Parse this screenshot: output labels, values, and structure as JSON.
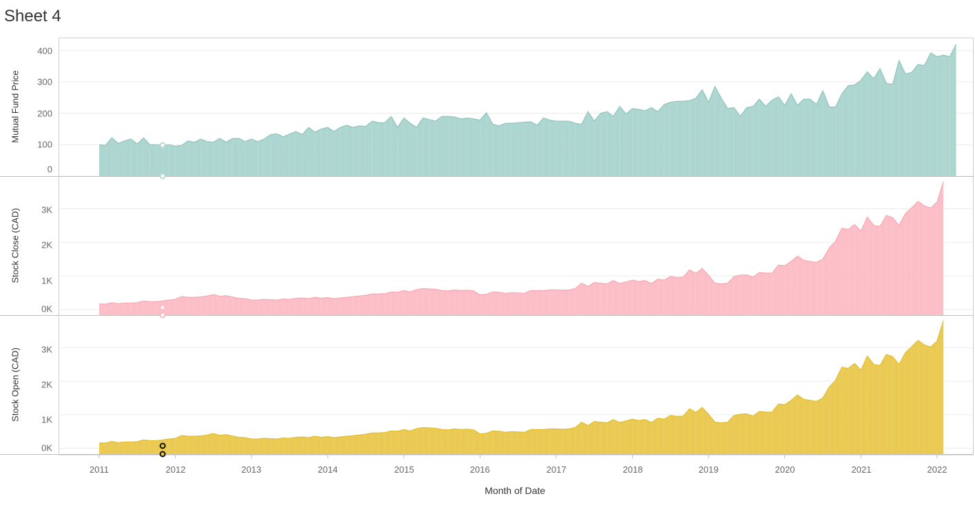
{
  "sheet_title": "Sheet 4",
  "colors": {
    "mutual_fund": "#a6d2cc",
    "mutual_fund_line": "#8fc4bd",
    "stock_close": "#fdbac2",
    "stock_close_line": "#f7a6b1",
    "stock_open": "#e8c643",
    "stock_open_line": "#e2bd2a"
  },
  "chart_data": {
    "type": "area",
    "xlabel": "Month of Date",
    "x_ticks": [
      "2011",
      "2012",
      "2013",
      "2014",
      "2015",
      "2016",
      "2017",
      "2018",
      "2019",
      "2020",
      "2021",
      "2022"
    ],
    "x_range": [
      "2011-01",
      "2021-12"
    ],
    "grid": true,
    "series": [
      {
        "name": "Mutual Fund Price",
        "ylabel": "Mutual Fund Price",
        "y_ticks": [
          "400",
          "300",
          "200",
          "100",
          "0"
        ],
        "ylim": [
          0,
          440
        ],
        "x_start": "2011-01",
        "values": [
          100,
          98,
          122,
          104,
          112,
          118,
          102,
          122,
          100,
          100,
          98,
          100,
          95,
          98,
          112,
          108,
          118,
          110,
          108,
          120,
          108,
          120,
          120,
          110,
          118,
          110,
          118,
          132,
          135,
          125,
          134,
          142,
          132,
          155,
          140,
          150,
          155,
          142,
          155,
          162,
          155,
          160,
          158,
          175,
          170,
          170,
          190,
          155,
          185,
          168,
          155,
          185,
          180,
          175,
          190,
          190,
          188,
          182,
          185,
          182,
          178,
          202,
          165,
          160,
          168,
          168,
          170,
          172,
          173,
          162,
          185,
          178,
          175,
          175,
          175,
          168,
          165,
          205,
          175,
          200,
          205,
          190,
          222,
          198,
          215,
          212,
          208,
          218,
          205,
          228,
          235,
          238,
          238,
          240,
          248,
          275,
          235,
          285,
          248,
          215,
          218,
          190,
          218,
          222,
          245,
          222,
          242,
          252,
          225,
          262,
          225,
          245,
          245,
          228,
          272,
          220,
          220,
          262,
          288,
          290,
          305,
          332,
          310,
          342,
          295,
          292,
          368,
          325,
          330,
          355,
          352,
          392,
          380,
          385,
          380,
          420
        ]
      },
      {
        "name": "Stock Close (CAD)",
        "ylabel": "Stock Close (CAD)",
        "y_ticks": [
          "3K",
          "2K",
          "1K",
          "0K"
        ],
        "ylim": [
          -170,
          3950
        ],
        "x_start": "2011-01",
        "values": [
          160,
          160,
          200,
          170,
          190,
          190,
          200,
          250,
          230,
          230,
          250,
          280,
          300,
          380,
          360,
          360,
          370,
          400,
          440,
          390,
          410,
          370,
          330,
          320,
          280,
          280,
          300,
          290,
          280,
          310,
          300,
          330,
          340,
          320,
          360,
          330,
          350,
          320,
          340,
          360,
          380,
          400,
          420,
          460,
          460,
          470,
          520,
          510,
          560,
          520,
          590,
          620,
          610,
          600,
          560,
          550,
          580,
          560,
          570,
          550,
          430,
          450,
          520,
          510,
          480,
          500,
          490,
          480,
          560,
          560,
          560,
          580,
          580,
          570,
          580,
          620,
          780,
          680,
          800,
          780,
          760,
          860,
          770,
          820,
          870,
          830,
          860,
          770,
          900,
          870,
          980,
          950,
          960,
          1180,
          1070,
          1220,
          1010,
          780,
          760,
          780,
          980,
          1020,
          1030,
          960,
          1100,
          1080,
          1080,
          1320,
          1300,
          1430,
          1590,
          1460,
          1430,
          1400,
          1500,
          1830,
          2030,
          2420,
          2380,
          2530,
          2330,
          2750,
          2500,
          2470,
          2800,
          2730,
          2500,
          2850,
          3030,
          3220,
          3080,
          3020,
          3200,
          3810
        ]
      },
      {
        "name": "Stock Open (CAD)",
        "ylabel": "Stock Open (CAD)",
        "y_ticks": [
          "3K",
          "2K",
          "1K",
          "0K"
        ],
        "ylim": [
          -170,
          3950
        ],
        "x_start": "2011-01",
        "values": [
          160,
          160,
          210,
          170,
          190,
          190,
          200,
          250,
          230,
          230,
          250,
          280,
          300,
          380,
          360,
          360,
          370,
          400,
          440,
          390,
          410,
          370,
          330,
          320,
          280,
          280,
          300,
          290,
          280,
          310,
          300,
          330,
          340,
          320,
          360,
          330,
          350,
          320,
          340,
          360,
          380,
          400,
          420,
          460,
          460,
          470,
          520,
          510,
          560,
          520,
          590,
          620,
          610,
          600,
          560,
          550,
          580,
          560,
          570,
          550,
          430,
          450,
          520,
          510,
          480,
          500,
          490,
          480,
          560,
          560,
          560,
          580,
          580,
          570,
          580,
          620,
          780,
          680,
          800,
          780,
          760,
          860,
          770,
          820,
          870,
          830,
          860,
          770,
          900,
          870,
          980,
          950,
          960,
          1180,
          1070,
          1220,
          1010,
          780,
          760,
          780,
          980,
          1020,
          1030,
          960,
          1100,
          1080,
          1080,
          1320,
          1300,
          1430,
          1590,
          1460,
          1430,
          1400,
          1500,
          1830,
          2030,
          2420,
          2380,
          2530,
          2330,
          2750,
          2500,
          2470,
          2800,
          2730,
          2500,
          2850,
          3030,
          3220,
          3080,
          3020,
          3200,
          3810
        ]
      }
    ]
  }
}
